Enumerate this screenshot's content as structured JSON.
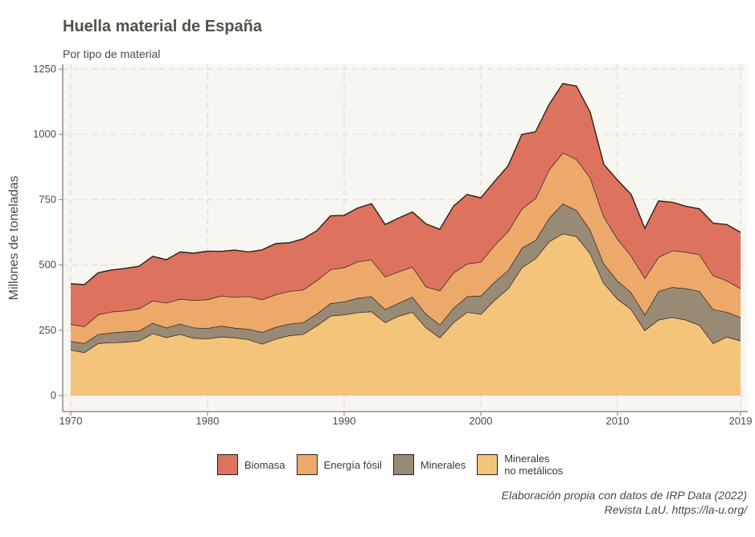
{
  "chart_data": {
    "type": "area",
    "stacked": true,
    "title": "Huella material de España",
    "subtitle": "Por tipo de material",
    "xlabel": "",
    "ylabel": "Millones de toneladas",
    "xlim": [
      1970,
      2019
    ],
    "ylim": [
      0,
      1250
    ],
    "x_ticks": [
      "1970",
      "1980",
      "1990",
      "2000",
      "2010",
      "2019"
    ],
    "y_ticks": [
      "0",
      "250",
      "500",
      "750",
      "1000",
      "1250"
    ],
    "grid": true,
    "legend_position": "bottom",
    "x": [
      1970,
      1971,
      1972,
      1973,
      1974,
      1975,
      1976,
      1977,
      1978,
      1979,
      1980,
      1981,
      1982,
      1983,
      1984,
      1985,
      1986,
      1987,
      1988,
      1989,
      1990,
      1991,
      1992,
      1993,
      1994,
      1995,
      1996,
      1997,
      1998,
      1999,
      2000,
      2001,
      2002,
      2003,
      2004,
      2005,
      2006,
      2007,
      2008,
      2009,
      2010,
      2011,
      2012,
      2013,
      2014,
      2015,
      2016,
      2017,
      2018,
      2019
    ],
    "series": [
      {
        "name": "Minerales no metálicos",
        "color": "#f3c47a",
        "values": [
          175,
          165,
          200,
          203,
          205,
          210,
          238,
          223,
          235,
          220,
          218,
          225,
          222,
          215,
          198,
          217,
          230,
          235,
          268,
          305,
          310,
          318,
          322,
          280,
          305,
          320,
          260,
          222,
          280,
          320,
          312,
          365,
          410,
          490,
          525,
          590,
          620,
          610,
          545,
          430,
          370,
          330,
          250,
          290,
          300,
          290,
          270,
          200,
          225,
          210
        ]
      },
      {
        "name": "Minerales",
        "color": "#988a75",
        "values": [
          33,
          35,
          35,
          38,
          40,
          38,
          40,
          37,
          40,
          40,
          40,
          42,
          37,
          40,
          45,
          45,
          45,
          45,
          45,
          48,
          50,
          55,
          58,
          50,
          50,
          58,
          52,
          50,
          55,
          60,
          70,
          70,
          70,
          75,
          70,
          90,
          115,
          100,
          90,
          75,
          70,
          65,
          60,
          110,
          115,
          120,
          130,
          130,
          95,
          90
        ]
      },
      {
        "name": "Energía fósil",
        "color": "#eda96a",
        "values": [
          65,
          65,
          75,
          80,
          80,
          85,
          85,
          95,
          95,
          105,
          110,
          115,
          118,
          125,
          125,
          125,
          125,
          125,
          128,
          130,
          130,
          140,
          140,
          125,
          120,
          115,
          105,
          130,
          135,
          125,
          130,
          140,
          150,
          150,
          160,
          185,
          195,
          195,
          200,
          180,
          160,
          140,
          140,
          130,
          140,
          140,
          140,
          130,
          120,
          110
        ]
      },
      {
        "name": "Biomasa",
        "color": "#dd735e",
        "values": [
          155,
          160,
          160,
          160,
          162,
          162,
          170,
          165,
          180,
          180,
          185,
          170,
          180,
          170,
          190,
          195,
          185,
          195,
          190,
          205,
          200,
          205,
          215,
          200,
          205,
          210,
          240,
          235,
          255,
          265,
          245,
          245,
          250,
          285,
          255,
          250,
          265,
          280,
          250,
          200,
          225,
          235,
          190,
          215,
          185,
          175,
          175,
          200,
          215,
          215
        ]
      }
    ]
  },
  "legend": {
    "items": [
      {
        "label": "Biomasa",
        "color": "#dd735e"
      },
      {
        "label": "Energía fósil",
        "color": "#eda96a"
      },
      {
        "label": "Minerales",
        "color": "#988a75"
      },
      {
        "label": "Minerales\nno metálicos",
        "color": "#f3c47a"
      }
    ]
  },
  "caption": {
    "line1": "Elaboración propia con datos de IRP Data (2022)",
    "line2": "Revista LaU. https://la-u.org/"
  }
}
